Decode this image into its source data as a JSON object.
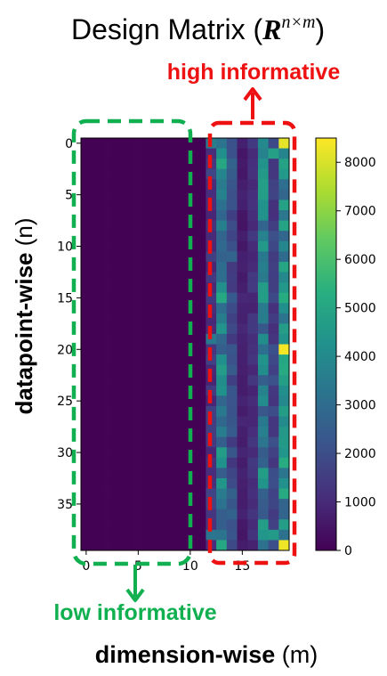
{
  "chart_data": {
    "type": "heatmap",
    "title": {
      "prefix": "Design Matrix (",
      "symbol": "R",
      "superscript": "n×m",
      "suffix": ")"
    },
    "xlabel": {
      "bold": "dimension-wise",
      "normal": " (m)"
    },
    "ylabel": {
      "bold": "datapoint-wise",
      "normal": " (n)"
    },
    "n_rows": 40,
    "n_cols": 20,
    "xticks": [
      0,
      5,
      10,
      15
    ],
    "yticks": [
      0,
      5,
      10,
      15,
      20,
      25,
      30,
      35
    ],
    "colorbar": {
      "min": 0,
      "max": 8500,
      "ticks": [
        0,
        1000,
        2000,
        3000,
        4000,
        5000,
        6000,
        7000,
        8000
      ],
      "colormap": "viridis"
    },
    "low_informative_cols": [
      0,
      10
    ],
    "high_informative_cols": [
      12,
      19
    ],
    "column_levels": [
      30,
      30,
      40,
      30,
      30,
      40,
      30,
      30,
      30,
      30,
      30,
      30,
      1300,
      3800,
      2100,
      700,
      1100,
      3500,
      1600,
      3900
    ],
    "hot_cells": [
      {
        "row": 0,
        "col": 19,
        "value": 8200
      },
      {
        "row": 20,
        "col": 19,
        "value": 8400
      },
      {
        "row": 39,
        "col": 19,
        "value": 8300
      },
      {
        "row": 1,
        "col": 18,
        "value": 4800
      },
      {
        "row": 38,
        "col": 18,
        "value": 4600
      },
      {
        "row": 0,
        "col": 12,
        "value": 3600
      },
      {
        "row": 19,
        "col": 12,
        "value": 3400
      },
      {
        "row": 38,
        "col": 12,
        "value": 3300
      }
    ]
  },
  "annotations": {
    "high_label": "high informative",
    "low_label": "low informative",
    "high_color": "#ee1111",
    "low_color": "#10b050"
  }
}
